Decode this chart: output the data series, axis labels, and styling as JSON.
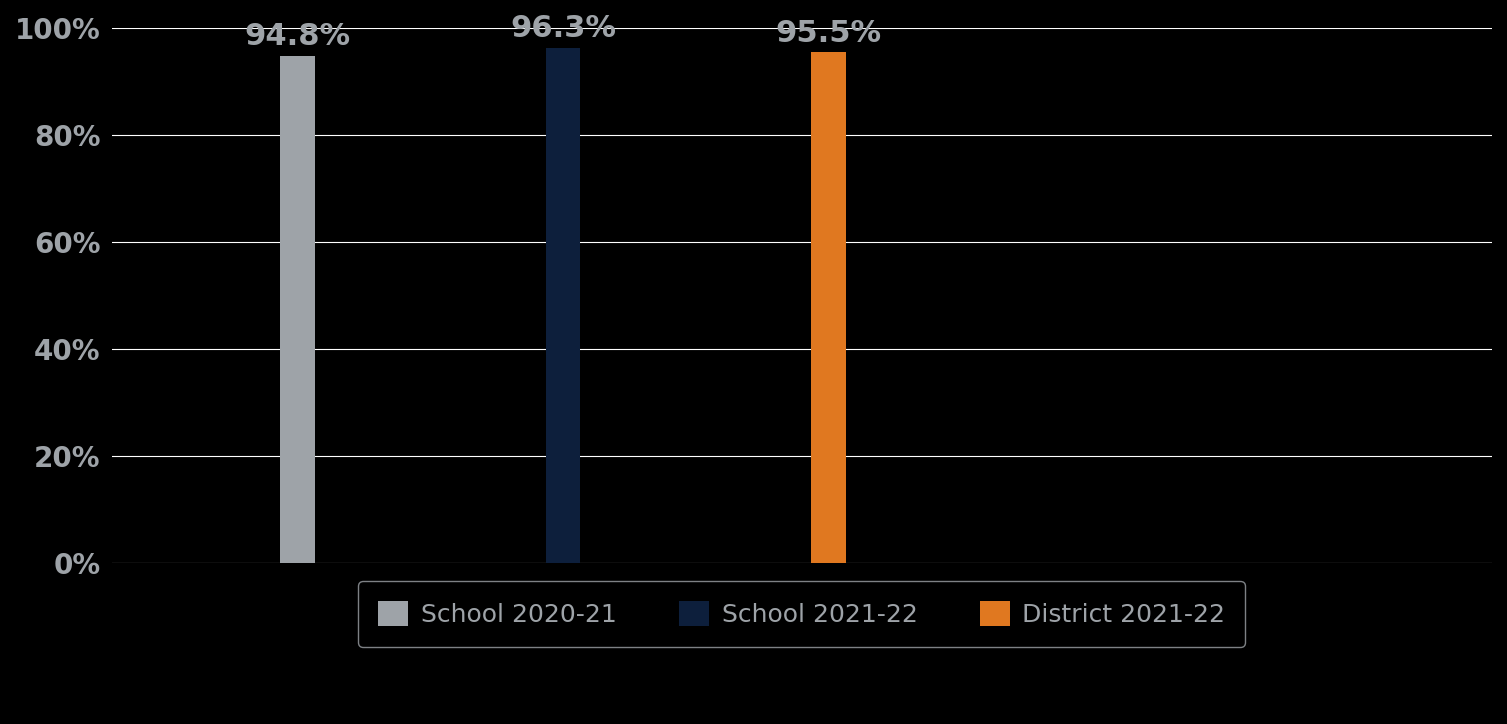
{
  "categories": [
    "School 2020-21",
    "School 2021-22",
    "District 2021-22"
  ],
  "values": [
    0.948,
    0.963,
    0.955
  ],
  "bar_colors": [
    "#9EA3A8",
    "#0D1F3C",
    "#E07820"
  ],
  "bar_labels": [
    "94.8%",
    "96.3%",
    "95.5%"
  ],
  "ylim": [
    0,
    1.0
  ],
  "yticks": [
    0.0,
    0.2,
    0.4,
    0.6,
    0.8,
    1.0
  ],
  "ytick_labels": [
    "0%",
    "20%",
    "40%",
    "60%",
    "80%",
    "100%"
  ],
  "background_color": "#000000",
  "text_color": "#9EA3A8",
  "grid_color": "#ffffff",
  "label_fontsize": 22,
  "tick_fontsize": 20,
  "legend_fontsize": 18,
  "bar_width": 0.13,
  "bar_positions": [
    1,
    2,
    3
  ],
  "xlim": [
    0.3,
    5.5
  ]
}
